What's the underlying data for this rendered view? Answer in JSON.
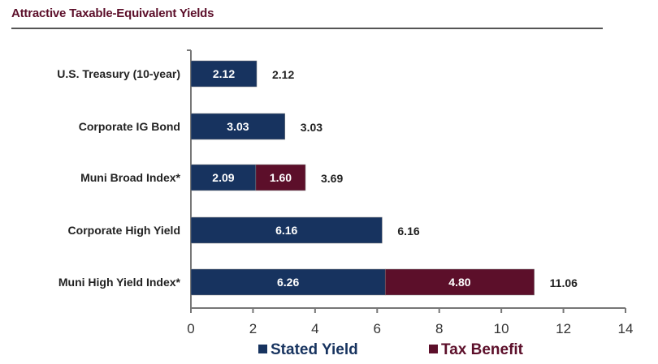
{
  "chart_data": {
    "type": "bar",
    "orientation": "horizontal",
    "stacked": true,
    "title": "Attractive Taxable-Equivalent Yields",
    "categories": [
      "U.S. Treasury (10-year)",
      "Corporate IG Bond",
      "Muni Broad Index*",
      "Corporate High Yield",
      "Muni High Yield Index*"
    ],
    "series": [
      {
        "name": "Stated Yield",
        "color": "#17335f",
        "values": [
          2.12,
          3.03,
          2.09,
          6.16,
          6.26
        ]
      },
      {
        "name": "Tax Benefit",
        "color": "#5c0f2a",
        "values": [
          null,
          null,
          1.6,
          null,
          4.8
        ]
      }
    ],
    "totals": [
      "2.12",
      "3.03",
      "3.69",
      "6.16",
      "11.06"
    ],
    "segment_labels": [
      [
        "2.12",
        null
      ],
      [
        "3.03",
        null
      ],
      [
        "2.09",
        "1.60"
      ],
      [
        "6.16",
        null
      ],
      [
        "6.26",
        "4.80"
      ]
    ],
    "xlim": [
      0,
      14
    ],
    "xticks": [
      "0",
      "2",
      "4",
      "6",
      "8",
      "10",
      "12",
      "14"
    ],
    "xlabel": "",
    "ylabel": "",
    "grid": false,
    "legend": "bottom-center"
  }
}
